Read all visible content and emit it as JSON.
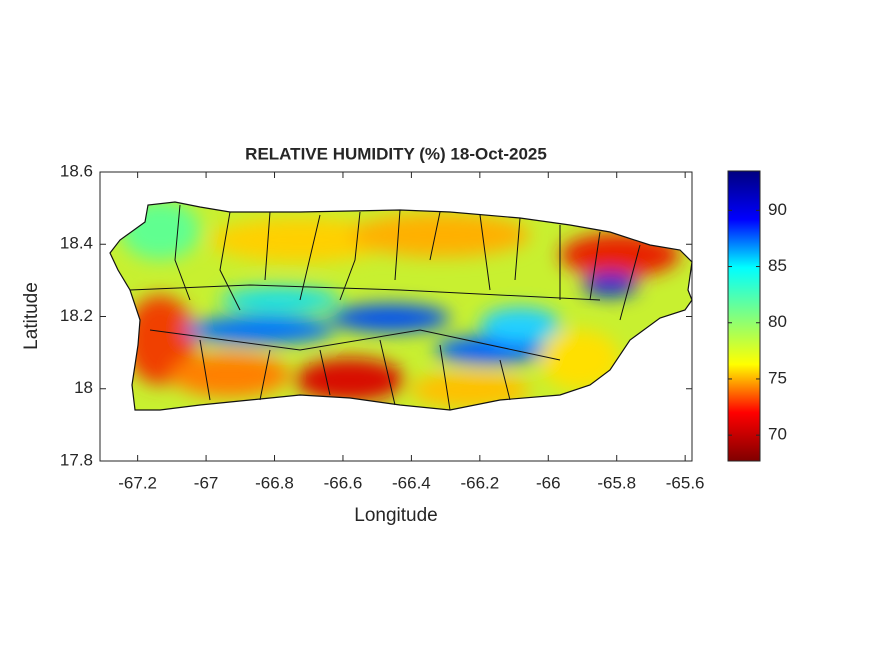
{
  "chart_data": {
    "type": "map",
    "title": "RELATIVE HUMIDITY (%) 18-Oct-2025",
    "x_label": "Longitude",
    "y_label": "Latitude",
    "xlim": [
      -67.31,
      -65.58
    ],
    "xticks": [
      -67.2,
      -67,
      -66.8,
      -66.6,
      -66.4,
      -66.2,
      -66,
      -65.8,
      -65.6
    ],
    "ylim": [
      17.8,
      18.6
    ],
    "yticks": [
      17.8,
      18,
      18.2,
      18.4,
      18.6
    ],
    "colormap": "jet",
    "clim": [
      67.7,
      93.5
    ],
    "cticks": [
      70,
      75,
      80,
      85,
      90
    ]
  }
}
